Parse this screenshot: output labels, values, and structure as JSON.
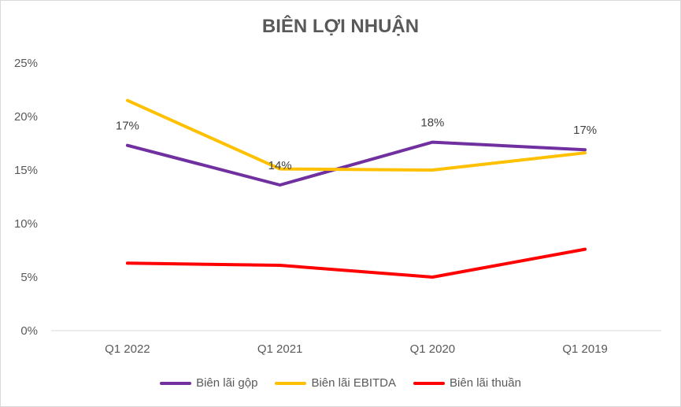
{
  "chart_data": {
    "type": "line",
    "title": "BIÊN LỢI NHUẬN",
    "xlabel": "",
    "ylabel": "",
    "categories": [
      "Q1 2022",
      "Q1 2021",
      "Q1 2020",
      "Q1 2019"
    ],
    "ylim": [
      0,
      25
    ],
    "yticks": [
      0,
      5,
      10,
      15,
      20,
      25
    ],
    "ytick_labels": [
      "0%",
      "5%",
      "10%",
      "15%",
      "20%",
      "25%"
    ],
    "grid": false,
    "legend_position": "bottom",
    "series": [
      {
        "name": "Biên lãi gộp",
        "color": "#7030A0",
        "values": [
          17.3,
          13.6,
          17.6,
          16.9
        ],
        "data_labels": [
          "17%",
          "14%",
          "18%",
          "17%"
        ]
      },
      {
        "name": "Biên lãi EBITDA",
        "color": "#FFC000",
        "values": [
          21.5,
          15.1,
          15.0,
          16.6
        ],
        "data_labels": null
      },
      {
        "name": "Biên lãi thuần",
        "color": "#FF0000",
        "values": [
          6.3,
          6.1,
          5.0,
          7.6
        ],
        "data_labels": null
      }
    ]
  }
}
